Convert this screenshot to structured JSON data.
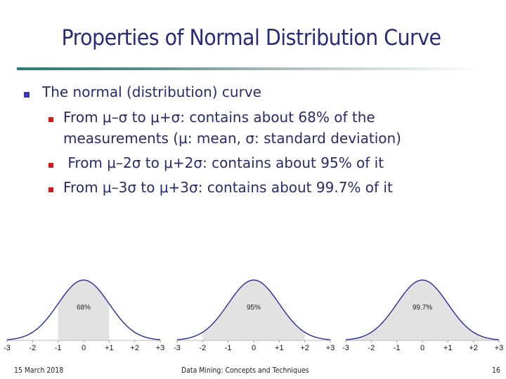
{
  "slide": {
    "title": "Properties of Normal Distribution Curve",
    "bullets": [
      {
        "text": "The normal (distribution) curve",
        "sub": [
          {
            "line1": "From μ–σ to μ+σ: contains about 68% of the",
            "line2": "measurements  (μ: mean, σ: standard deviation)"
          },
          {
            "line1": " From μ–2σ to μ+2σ: contains about 95% of it"
          },
          {
            "line1": "From μ–3σ to μ+3σ: contains about 99.7% of it"
          }
        ]
      }
    ],
    "colors": {
      "title": "#2a2a78",
      "level1_bullet": "#3a3ab8",
      "level2_bullet": "#d81818",
      "curve": "#2a2a9a",
      "shade": "#e2e2e2"
    }
  },
  "chart_data": [
    {
      "type": "area",
      "title": "",
      "annotation": "68%",
      "x_ticks": [
        "-3",
        "-2",
        "-1",
        "0",
        "+1",
        "+2",
        "+3"
      ],
      "shaded_range": [
        -1,
        1
      ],
      "xlim": [
        -3,
        3
      ],
      "grid": false,
      "curve": "standard normal density"
    },
    {
      "type": "area",
      "title": "",
      "annotation": "95%",
      "x_ticks": [
        "-3",
        "-2",
        "-1",
        "0",
        "+1",
        "+2",
        "+3"
      ],
      "shaded_range": [
        -2,
        2
      ],
      "xlim": [
        -3,
        3
      ],
      "grid": false,
      "curve": "standard normal density"
    },
    {
      "type": "area",
      "title": "",
      "annotation": "99.7%",
      "x_ticks": [
        "-3",
        "-2",
        "-1",
        "0",
        "+1",
        "+2",
        "+3"
      ],
      "shaded_range": [
        -3,
        3
      ],
      "xlim": [
        -3,
        3
      ],
      "grid": false,
      "curve": "standard normal density"
    }
  ],
  "footer": {
    "date": "15 March 2018",
    "center": "Data Mining: Concepts and Techniques",
    "page": "16"
  }
}
